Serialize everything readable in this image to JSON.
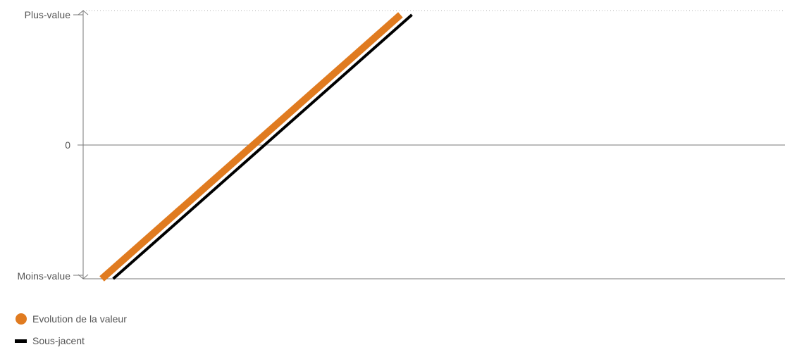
{
  "chart_data": {
    "type": "line",
    "y_tick_labels": [
      "Plus-value",
      "0",
      "Moins-value"
    ],
    "ylim": [
      -1,
      1
    ],
    "xlim": [
      0,
      1
    ],
    "grid": false,
    "legend_placement": "bottom-left",
    "series": [
      {
        "name": "Evolution de la valeur",
        "color": "#e07b20",
        "marker": "circle",
        "x": [
          0.1297,
          0.5102
        ],
        "y": [
          -1,
          1
        ]
      },
      {
        "name": "Sous-jacent",
        "color": "#000000",
        "marker": "bar",
        "x": [
          0.1442,
          0.5247
        ],
        "y": [
          -1,
          1
        ]
      }
    ]
  },
  "legend": {
    "items": [
      {
        "label": "Evolution de la valeur",
        "color": "#e07b20",
        "icon": "orange-circle-icon"
      },
      {
        "label": "Sous-jacent",
        "color": "#000000",
        "icon": "black-bar-icon"
      }
    ]
  },
  "colors": {
    "axis": "#7a7a7a",
    "text": "#555555",
    "gridline": "#b0b0b0"
  }
}
